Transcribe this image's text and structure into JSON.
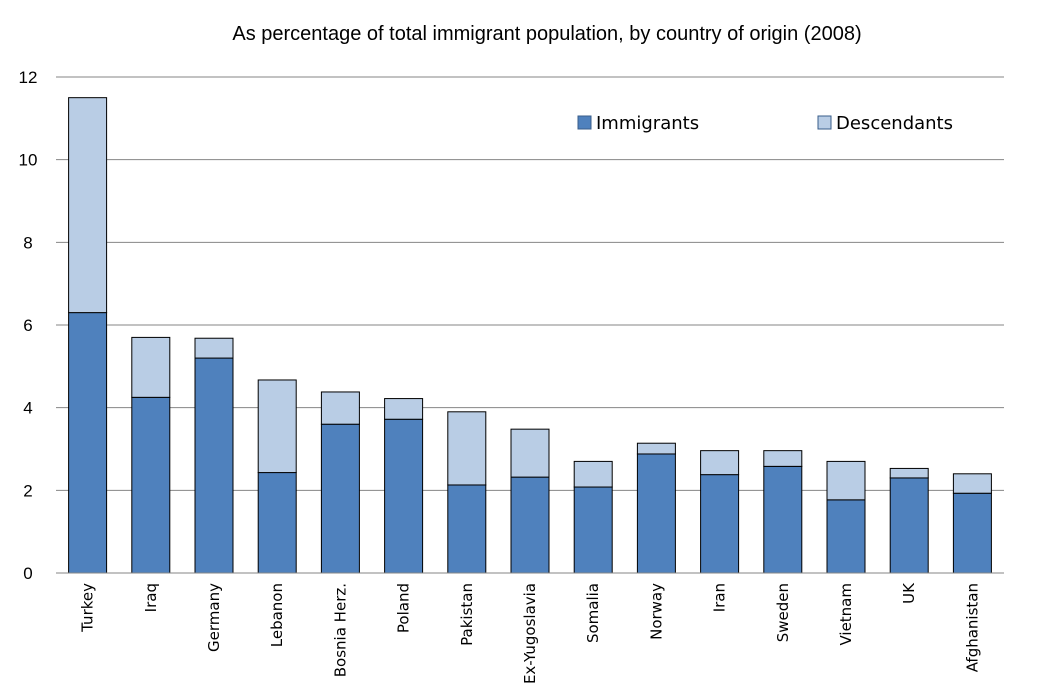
{
  "chart_data": {
    "type": "bar",
    "stacked": true,
    "title": "As percentage of total immigrant population, by country of origin (2008)",
    "categories": [
      "Turkey",
      "Iraq",
      "Germany",
      "Lebanon",
      "Bosnia Herz.",
      "Poland",
      "Pakistan",
      "Ex-Yugoslavia",
      "Somalia",
      "Norway",
      "Iran",
      "Sweden",
      "Vietnam",
      "UK",
      "Afghanistan"
    ],
    "series": [
      {
        "name": "Immigrants",
        "color": "#4f81bd",
        "values": [
          6.3,
          4.25,
          5.2,
          2.43,
          3.6,
          3.72,
          2.13,
          2.32,
          2.08,
          2.88,
          2.38,
          2.58,
          1.77,
          2.3,
          1.93
        ]
      },
      {
        "name": "Descendants",
        "color": "#b9cde5",
        "values": [
          5.2,
          1.45,
          0.48,
          2.24,
          0.78,
          0.5,
          1.77,
          1.16,
          0.62,
          0.26,
          0.58,
          0.38,
          0.93,
          0.23,
          0.47
        ]
      }
    ],
    "ylim": [
      0,
      12
    ],
    "yticks": [
      0,
      2,
      4,
      6,
      8,
      10,
      12
    ],
    "grid": true,
    "legend": "top-right"
  }
}
